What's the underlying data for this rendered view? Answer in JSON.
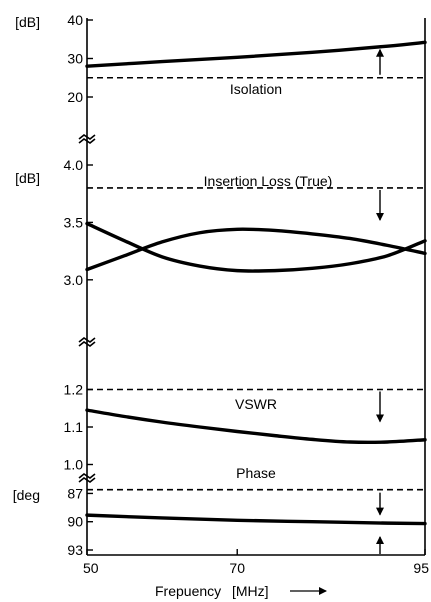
{
  "chart_data": {
    "type": "line",
    "x_axis": {
      "label": "Frepuency",
      "unit": "[MHz]",
      "arrow": "——▶",
      "range": [
        50,
        95
      ],
      "ticks": [
        "50",
        "70",
        "95"
      ]
    },
    "panels": [
      {
        "id": "isolation",
        "unit_label": "[dB]",
        "ylim": [
          20,
          40
        ],
        "ticks": [
          {
            "v": 40,
            "t": "40"
          },
          {
            "v": 30,
            "t": "30"
          },
          {
            "v": 20,
            "t": "20"
          }
        ],
        "spec_label": "Isolation",
        "spec": {
          "y": 25,
          "arrow": "both"
        },
        "series": [
          {
            "x": [
              50,
              60,
              70,
              80,
              90,
              95
            ],
            "y": [
              28.0,
              29.2,
              30.3,
              31.6,
              33.2,
              34.2
            ]
          }
        ]
      },
      {
        "id": "insertion_loss",
        "unit_label": "[dB]",
        "ylim": [
          2.65,
          4.0
        ],
        "ticks": [
          {
            "v": 4.0,
            "t": "4.0"
          },
          {
            "v": 3.5,
            "t": "3.5"
          },
          {
            "v": 3.0,
            "t": "3.0"
          }
        ],
        "spec_label": "Insertion Loss (True)",
        "spec": {
          "y": 3.8,
          "arrow": "down"
        },
        "series": [
          {
            "x": [
              50,
              55,
              60,
              65,
              70,
              75,
              80,
              85,
              90,
              95
            ],
            "y": [
              3.49,
              3.34,
              3.2,
              3.12,
              3.08,
              3.08,
              3.1,
              3.14,
              3.21,
              3.34
            ]
          },
          {
            "x": [
              50,
              55,
              60,
              65,
              70,
              75,
              80,
              85,
              90,
              95
            ],
            "y": [
              3.09,
              3.21,
              3.33,
              3.41,
              3.44,
              3.43,
              3.4,
              3.36,
              3.3,
              3.23
            ]
          }
        ]
      },
      {
        "id": "vswr",
        "unit_label": "",
        "ylim": [
          0.98,
          1.3
        ],
        "ticks": [
          {
            "v": 1.2,
            "t": "1.2"
          },
          {
            "v": 1.1,
            "t": "1.1"
          },
          {
            "v": 1.0,
            "t": "1.0"
          }
        ],
        "spec_label": "VSWR",
        "spec": {
          "y": 1.2,
          "arrow": "down"
        },
        "series": [
          {
            "x": [
              50,
              55,
              60,
              65,
              70,
              75,
              80,
              85,
              90,
              95
            ],
            "y": [
              1.145,
              1.128,
              1.113,
              1.1,
              1.088,
              1.077,
              1.067,
              1.06,
              1.06,
              1.066
            ]
          }
        ]
      },
      {
        "id": "phase",
        "unit_label": "[deg",
        "ylim": [
          86,
          93
        ],
        "inverted": true,
        "ticks": [
          {
            "v": 87,
            "t": "87"
          },
          {
            "v": 90,
            "t": "90"
          },
          {
            "v": 93,
            "t": "93"
          }
        ],
        "spec_label": "Phase",
        "spec": {
          "y": 86.6,
          "arrow": "both"
        },
        "series": [
          {
            "x": [
              50,
              60,
              70,
              80,
              90,
              95
            ],
            "y": [
              89.3,
              89.6,
              89.85,
              90.0,
              90.15,
              90.2
            ]
          }
        ]
      }
    ]
  }
}
